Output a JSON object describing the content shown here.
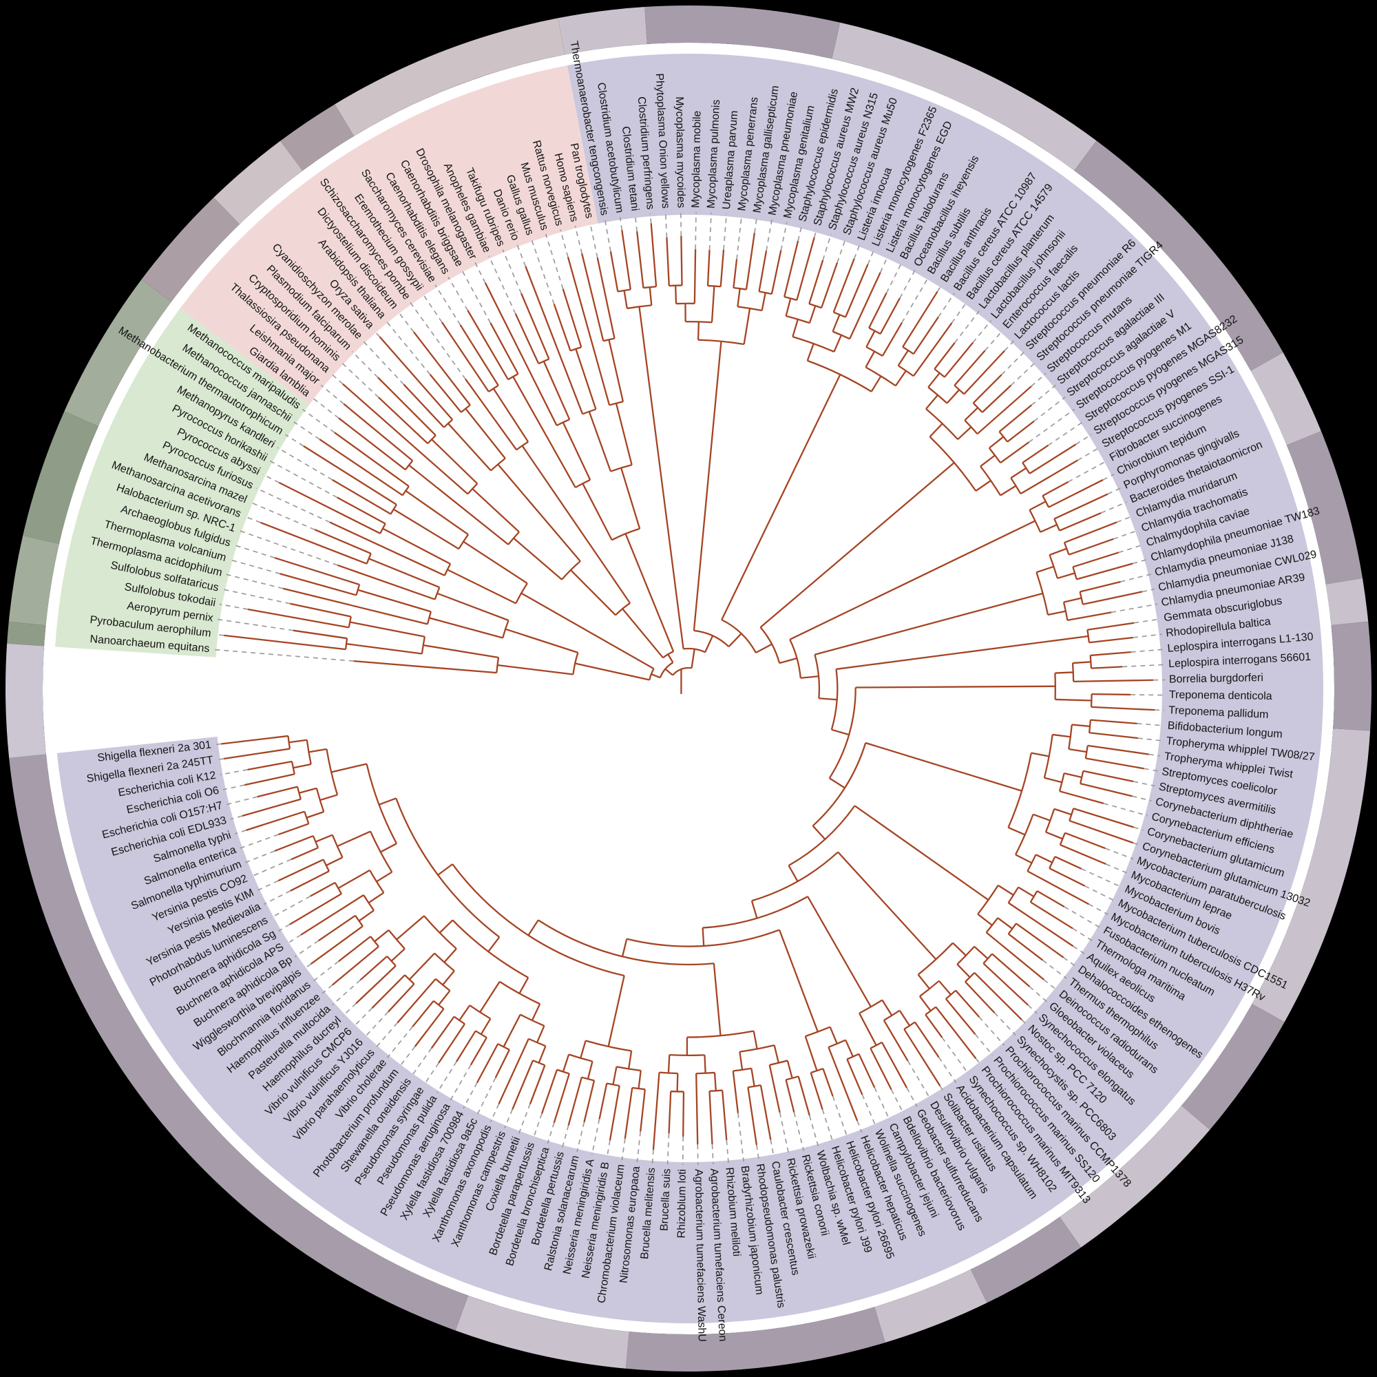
{
  "figure": {
    "type": "circular-phylogenetic-tree",
    "background_color": "#000000"
  },
  "colors": {
    "background": "#000000",
    "inner_disc": "#ffffff",
    "branch": "#a54423",
    "leader_line": "#9b9b9b",
    "label_text": "#141414",
    "gap_ring": "#ffffff",
    "sector": {
      "bacteria": "#cbc7dc",
      "eukaryota": "#f1d8d7",
      "archaea": "#d9e8d0"
    },
    "ring": {
      "bacteria": [
        "#c9c2cd",
        "#a79daa"
      ],
      "eukaryota": [
        "#cdc2c6",
        "#ab9fa5"
      ],
      "archaea": [
        "#a3ad9c",
        "#8f9d88"
      ],
      "gap": "#cbc6d1"
    }
  },
  "groups": {
    "bacteria": [
      4,
      9,
      13,
      13,
      4,
      7,
      2,
      5,
      14,
      6,
      8,
      5,
      5,
      12,
      8,
      35
    ],
    "eukaryota": [
      11,
      3,
      4,
      5
    ],
    "archaea": [
      7,
      6,
      4,
      1
    ]
  },
  "taxa": {
    "bacteria": [
      "Thermoanaerobacter tengcongensis",
      "Clostridium acetobutylicum",
      "Clostridium tetani",
      "Clostridium perfringens",
      "Phytoplasma Onion yellows",
      "Mycoplasma mycoides",
      "Mycoplasma mobile",
      "Mycoplasma pulmonis",
      "Ureaplasma parvum",
      "Mycoplasma penerrans",
      "Mycoplasma gallisepticum",
      "Mycoplasma pneumoniae",
      "Mycoplasma genitalium",
      "Staphylococcus epidermidis",
      "Staphylococcus aureus MW2",
      "Staphylococcus aureus N315",
      "Staphylococcus aureus Mu50",
      "Listeria innocua",
      "Listeria monocytogenes F2365",
      "Listeria monocytogenes EGD",
      "Bacillus halodurans",
      "Oceanobacillus iheyensis",
      "Bacillus subtilis",
      "Bacillus anthracis",
      "Bacillus cereus ATCC 10987",
      "Bacillus cereus ATCC 14579",
      "Lactobacillus planterum",
      "Lactobacillus johnsonii",
      "Enterococcus faecalis",
      "Lactococcus lactis",
      "Streptococcus pneumoniae R6",
      "Streptococcus pneumoniae TIGR4",
      "Streptococcus mutans",
      "Streptococcus agalactiae III",
      "Streptococcus agalactiae V",
      "Streptococcus pyogenes M1",
      "Streptococcus pyogenes MGAS8232",
      "Streptococcus pyogenes MGAS315",
      "Streptococcus pyogenes SSI-1",
      "Fibrobacter succinogenes",
      "Chiorobium tepidum",
      "Porphyromonas gingivalls",
      "Bacteroides thetaiotaomicron",
      "Chlamydia muridarum",
      "Chlamydia trachomatis",
      "Chalmydophila caviae",
      "Chlamydophila pneumoniae TW183",
      "Chlamydia pneumoniae J138",
      "Chlamydia pneumoniae CWL029",
      "Chlamydia pneumoniae AR39",
      "Gemmata obscuriglobus",
      "Rhodopirellula baltica",
      "Leplospira interrogans L1-130",
      "Leplospira interrogans 56601",
      "Borrelia burgdorferi",
      "Treponema denticola",
      "Treponema pallidum",
      "Bifidobacterium longum",
      "Tropheryma whipplel TW08/27",
      "Tropheryma whipplei Twist",
      "Streptomyces coelicolor",
      "Streptomyces avermitilis",
      "Corynebacterium diphtheriae",
      "Corynebacterium efficiens",
      "Corynebacterium glutamicum",
      "Corynebacterium glutamicum 13032",
      "Mycobacterium paratuberculosis",
      "Mycobacterium leprae",
      "Mycobacterium bovis",
      "Mycobacterium tuberculosis CDC1551",
      "Mycobacterium tuberculosis H37Rv",
      "Fusobacterium nucleatum",
      "Thermologa maritima",
      "Aquilex aeolicus",
      "Dehalococcoides ethenogenes",
      "Thermus thermophilus",
      "Deinococcus radiodurans",
      "Gloeobacter violaceus",
      "Synechococcus elongatus",
      "Nostoc sp. PCC 7120",
      "Synechocystis sp. PCC6803",
      "Prochiorococcus marinus CCMP1378",
      "Prochiorococcus marinus SS120",
      "Prochiorococcus marinus MIT9313",
      "Synechococcus sp. WH8102",
      "Acidobacterium capsulatum",
      "Solibacter usitatus",
      "Desulfovibrio vulgaris",
      "Geobacter sulfurreducans",
      "Bdellovibrio bacteriovorus",
      "Campylobacter jejuni",
      "Wolinella succinogenes",
      "Helicobacter hepaticus",
      "Helicobacter pylori 26695",
      "Helicobacter pylori J99",
      "Wolbachia sp. wMel",
      "Rickettsia conorii",
      "Rickettsia prowazekii",
      "Caulobacter crescentus",
      "Rhodopseudomonas palustris",
      "Bradyrhizobium japonicum",
      "Rhizobium meliloti",
      "Agrobacterium tumefaciens Cereon",
      "Agrobacterium tumefaciens WashU",
      "Rhizoblum loti",
      "Brucella suis",
      "Brucella melitensis",
      "Nitrosomonas europaoa",
      "Chromobacterium violaceum",
      "Neisseria meningiridis B",
      "Neisseria meningiridis A",
      "Ralstonia solanacearum",
      "Bordetella pertussis",
      "Bordetella bronchiseptica",
      "Bordetella parapertussis",
      "Coxiella burnetii",
      "Xanthomonas campestris",
      "Xanthomonas axonopodis",
      "Xylella fastidiosa 9a5c",
      "Xylella fastidiosa 700984",
      "Pseudomonas aeruginosa",
      "Pseudomonas pulida",
      "Pseudomonas syringae",
      "Shewanella oneidensis",
      "Photobacterium profundum",
      "Vibrio cholerae",
      "Vibrio parahaemolyticus",
      "Vibrio vulnificus YJ016",
      "Vibrio vulnificus CMCP6",
      "Haemophilus ducreyl",
      "Pasteurella multocida",
      "Haemophilus influenzee",
      "Blochmannia floridanus",
      "Wigglesworthia brevipalpis",
      "Buchnera aphidicola Bp",
      "Buchnera aphidicola APS",
      "Buchnera aphidicola Sg",
      "Photorhabdus luminescens",
      "Yersinia pestis Medievalia",
      "Yersinia pestis KIM",
      "Yersinia pestis CO92",
      "Salmonella typhimurium",
      "Salmonella enterica",
      "Salmonella typhi",
      "Escherichia coli EDL933",
      "Escherichia coli O157:H7",
      "Escherichia coli O6",
      "Escherichia coli K12",
      "Shigella flexneri 2a 245TT",
      "Shigella flexneri 2a 301"
    ],
    "eukaryota": [
      "Pan troglodytes",
      "Homo sapiens",
      "Rattus norvegicus",
      "Mus musculus",
      "Gallus gallus",
      "Danio rerio",
      "Takifugu rubripes",
      "Anopheles gambiae",
      "Drosophila melanogaster",
      "Caenorhabditis briggsae",
      "Caenorhabditis elegans",
      "Saccharomyces cerevisiae",
      "Eremothecium gossypii",
      "Schizosaccharomyces pombe",
      "Dictyostelium discoideum",
      "Arabidopsis thaliana",
      "Oryza sativa",
      "Cyanidioschyzon merolae",
      "Plasmodium falciparum",
      "Cryptosporidium hominis",
      "Thalassiosira pseudonana",
      "Leishmania major",
      "Giardia lamblia"
    ],
    "archaea": [
      "Methanococcus maripaludis",
      "Methanococcus jannaschii",
      "Methanobacterium thermautotrophicum",
      "Methanopyrus kandleri",
      "Pyrococcus horikashii",
      "Pyrococcus abyssi",
      "Pyrococcus furiosus",
      "Methanosarcina mazel",
      "Methanosarcina acetivorans",
      "Halobacterium sp. NRC-1",
      "Archaeoglobus fulgidus",
      "Thermoplasma volcanium",
      "Thermoplasma acidophilum",
      "Sulfolobus solfataricus",
      "Sulfolobus tokodaii",
      "Aeropyrum pernix",
      "Pyrobaculum aerophilum",
      "Nanoarchaeum equitans"
    ]
  }
}
